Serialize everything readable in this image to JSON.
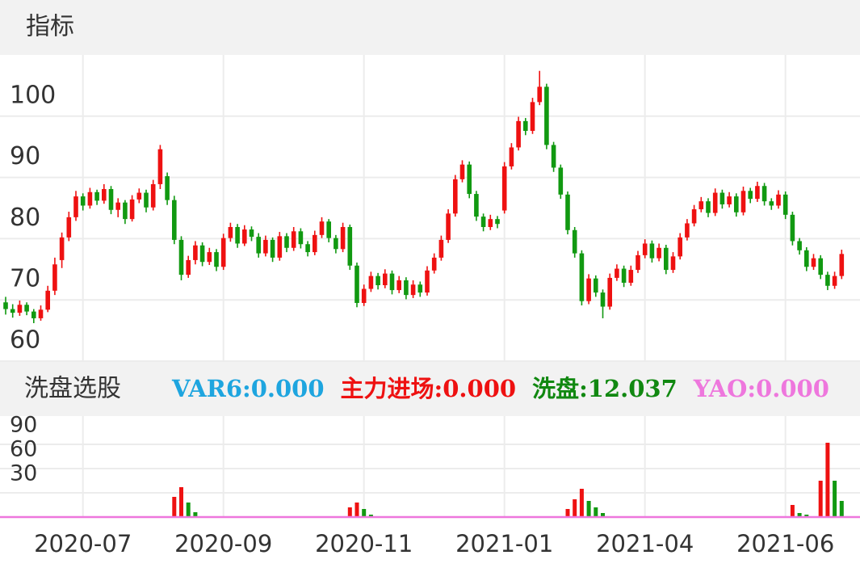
{
  "header": {
    "title": "指标"
  },
  "chart_data": {
    "type": "candlestick",
    "categories": [
      null,
      null,
      null,
      null,
      null,
      null,
      null,
      null,
      null,
      null,
      null,
      "2020-07",
      null,
      null,
      null,
      null,
      null,
      null,
      null,
      null,
      null,
      null,
      null,
      null,
      null,
      null,
      null,
      null,
      null,
      null,
      null,
      "2020-09",
      null,
      null,
      null,
      null,
      null,
      null,
      null,
      null,
      null,
      null,
      null,
      null,
      null,
      null,
      null,
      null,
      null,
      null,
      null,
      "2020-11",
      null,
      null,
      null,
      null,
      null,
      null,
      null,
      null,
      null,
      null,
      null,
      null,
      null,
      null,
      null,
      null,
      null,
      null,
      null,
      "2021-01",
      null,
      null,
      null,
      null,
      null,
      null,
      null,
      null,
      null,
      null,
      null,
      null,
      null,
      null,
      null,
      null,
      null,
      null,
      null,
      "2021-04",
      null,
      null,
      null,
      null,
      null,
      null,
      null,
      null,
      null,
      null,
      null,
      null,
      null,
      null,
      null,
      null,
      null,
      null,
      null,
      "2021-06",
      null,
      null,
      null,
      null,
      null,
      null,
      null,
      null
    ],
    "up_color": "#ee1111",
    "down_color": "#119911",
    "candles": [
      [
        69.6,
        70.5,
        67.6,
        68.5
      ],
      [
        68.5,
        69.3,
        67.1,
        67.9
      ],
      [
        67.9,
        69.9,
        67.4,
        69.2
      ],
      [
        69.2,
        69.6,
        67.5,
        68.1
      ],
      [
        68.1,
        68.5,
        66.2,
        67.0
      ],
      [
        67.0,
        69.1,
        66.6,
        68.4
      ],
      [
        68.4,
        72.3,
        68.0,
        71.5
      ],
      [
        71.5,
        76.9,
        70.8,
        75.8
      ],
      [
        76.5,
        81.0,
        75.2,
        80.2
      ],
      [
        80.2,
        84.4,
        79.6,
        83.5
      ],
      [
        83.5,
        87.8,
        82.9,
        86.9
      ],
      [
        86.9,
        87.4,
        84.6,
        85.4
      ],
      [
        85.4,
        88.3,
        84.9,
        87.6
      ],
      [
        87.6,
        88.0,
        85.5,
        86.2
      ],
      [
        86.2,
        88.9,
        85.7,
        88.1
      ],
      [
        88.1,
        88.6,
        84.0,
        84.7
      ],
      [
        84.7,
        86.6,
        83.5,
        85.9
      ],
      [
        85.9,
        86.3,
        82.4,
        83.2
      ],
      [
        83.2,
        87.1,
        82.8,
        86.4
      ],
      [
        86.4,
        88.2,
        85.8,
        87.5
      ],
      [
        87.5,
        88.0,
        84.3,
        85.1
      ],
      [
        85.1,
        89.6,
        84.6,
        88.9
      ],
      [
        88.9,
        95.3,
        88.1,
        94.6
      ],
      [
        90.2,
        90.8,
        85.5,
        86.3
      ],
      [
        86.3,
        87.0,
        79.1,
        79.8
      ],
      [
        79.8,
        80.4,
        73.2,
        74.1
      ],
      [
        74.1,
        77.2,
        73.6,
        76.5
      ],
      [
        76.5,
        79.6,
        75.8,
        78.9
      ],
      [
        78.9,
        79.4,
        75.5,
        76.2
      ],
      [
        76.2,
        78.5,
        75.7,
        77.8
      ],
      [
        77.8,
        78.3,
        74.7,
        75.4
      ],
      [
        75.4,
        80.8,
        74.9,
        80.1
      ],
      [
        80.1,
        82.6,
        79.5,
        81.9
      ],
      [
        81.9,
        82.4,
        78.5,
        79.2
      ],
      [
        79.2,
        82.2,
        78.8,
        81.5
      ],
      [
        81.5,
        82.0,
        79.6,
        80.3
      ],
      [
        80.3,
        80.9,
        76.9,
        77.6
      ],
      [
        77.6,
        80.5,
        77.1,
        79.8
      ],
      [
        79.8,
        80.2,
        76.2,
        76.9
      ],
      [
        76.9,
        81.1,
        76.4,
        80.4
      ],
      [
        80.4,
        80.9,
        77.8,
        78.5
      ],
      [
        78.5,
        81.9,
        78.0,
        81.2
      ],
      [
        81.2,
        81.7,
        78.4,
        79.1
      ],
      [
        79.1,
        79.6,
        77.1,
        77.8
      ],
      [
        77.8,
        81.3,
        77.3,
        80.6
      ],
      [
        80.6,
        83.5,
        80.1,
        82.8
      ],
      [
        82.8,
        83.2,
        79.4,
        80.1
      ],
      [
        80.1,
        80.6,
        77.6,
        78.3
      ],
      [
        78.3,
        82.6,
        77.8,
        81.9
      ],
      [
        81.9,
        82.3,
        74.9,
        75.6
      ],
      [
        75.6,
        76.1,
        68.8,
        69.5
      ],
      [
        69.5,
        72.5,
        69.0,
        71.8
      ],
      [
        71.8,
        74.6,
        71.3,
        73.9
      ],
      [
        73.9,
        74.4,
        71.7,
        72.4
      ],
      [
        72.4,
        75.0,
        71.9,
        74.3
      ],
      [
        74.3,
        74.8,
        70.9,
        71.6
      ],
      [
        71.6,
        73.9,
        71.1,
        73.2
      ],
      [
        73.2,
        73.7,
        70.1,
        70.8
      ],
      [
        70.8,
        73.2,
        70.3,
        72.5
      ],
      [
        72.5,
        73.0,
        70.5,
        71.2
      ],
      [
        71.2,
        75.5,
        70.7,
        74.8
      ],
      [
        74.8,
        77.6,
        74.3,
        76.9
      ],
      [
        76.9,
        80.5,
        76.4,
        79.8
      ],
      [
        79.8,
        84.8,
        79.3,
        84.1
      ],
      [
        84.1,
        90.4,
        83.6,
        89.7
      ],
      [
        89.7,
        92.8,
        89.2,
        92.1
      ],
      [
        92.1,
        92.6,
        86.6,
        87.3
      ],
      [
        87.3,
        87.8,
        82.9,
        83.6
      ],
      [
        83.6,
        84.1,
        81.2,
        81.9
      ],
      [
        81.9,
        83.9,
        81.4,
        83.2
      ],
      [
        83.2,
        83.7,
        81.7,
        82.4
      ],
      [
        84.6,
        92.5,
        84.1,
        91.8
      ],
      [
        91.8,
        95.6,
        91.3,
        94.9
      ],
      [
        94.9,
        99.9,
        94.4,
        99.2
      ],
      [
        99.2,
        99.7,
        96.9,
        97.6
      ],
      [
        97.6,
        103.0,
        97.1,
        102.3
      ],
      [
        102.3,
        107.4,
        101.8,
        104.8
      ],
      [
        104.8,
        105.3,
        94.6,
        95.3
      ],
      [
        95.3,
        95.8,
        90.9,
        91.6
      ],
      [
        91.6,
        92.1,
        86.5,
        87.2
      ],
      [
        87.2,
        87.7,
        80.7,
        81.4
      ],
      [
        81.4,
        81.9,
        76.9,
        77.6
      ],
      [
        77.6,
        78.1,
        69.1,
        69.8
      ],
      [
        69.8,
        74.2,
        69.3,
        73.5
      ],
      [
        73.5,
        74.0,
        70.5,
        71.2
      ],
      [
        71.2,
        71.7,
        67.0,
        68.9
      ],
      [
        68.9,
        74.3,
        68.4,
        73.6
      ],
      [
        73.6,
        75.8,
        73.1,
        75.1
      ],
      [
        75.1,
        75.6,
        72.1,
        72.8
      ],
      [
        72.8,
        75.6,
        72.3,
        74.9
      ],
      [
        74.9,
        78.0,
        74.4,
        77.3
      ],
      [
        77.3,
        79.9,
        76.8,
        79.2
      ],
      [
        79.2,
        79.7,
        76.1,
        76.8
      ],
      [
        76.8,
        79.2,
        76.3,
        78.5
      ],
      [
        78.5,
        79.0,
        74.2,
        74.9
      ],
      [
        74.9,
        77.8,
        74.4,
        77.1
      ],
      [
        77.1,
        80.9,
        76.6,
        80.2
      ],
      [
        80.2,
        83.2,
        79.7,
        82.5
      ],
      [
        82.5,
        85.5,
        82.0,
        84.8
      ],
      [
        84.8,
        86.8,
        84.3,
        86.1
      ],
      [
        86.1,
        86.6,
        83.5,
        84.2
      ],
      [
        84.2,
        88.2,
        83.7,
        87.5
      ],
      [
        87.5,
        88.0,
        84.9,
        85.6
      ],
      [
        85.6,
        87.6,
        85.1,
        86.9
      ],
      [
        86.9,
        87.4,
        83.6,
        84.3
      ],
      [
        84.3,
        88.5,
        83.8,
        87.8
      ],
      [
        87.8,
        88.3,
        85.8,
        86.5
      ],
      [
        86.5,
        89.3,
        86.0,
        88.6
      ],
      [
        88.6,
        89.1,
        85.4,
        86.1
      ],
      [
        86.1,
        86.6,
        84.7,
        85.4
      ],
      [
        85.4,
        87.9,
        84.9,
        87.2
      ],
      [
        87.2,
        87.7,
        83.2,
        83.9
      ],
      [
        83.9,
        84.4,
        78.9,
        79.6
      ],
      [
        79.6,
        80.1,
        77.4,
        78.1
      ],
      [
        78.1,
        78.6,
        74.7,
        75.4
      ],
      [
        75.4,
        77.5,
        74.9,
        76.8
      ],
      [
        76.8,
        77.3,
        73.4,
        74.1
      ],
      [
        74.1,
        74.6,
        71.6,
        72.3
      ],
      [
        72.3,
        74.6,
        71.8,
        73.9
      ],
      [
        73.9,
        78.2,
        73.4,
        77.5
      ]
    ],
    "ylim": [
      60,
      110
    ],
    "yticks": [
      60,
      70,
      80,
      90,
      100
    ],
    "grid": true
  },
  "indicator": {
    "type": "bar",
    "title": "洗盘选股",
    "legend": [
      {
        "text": "VAR6:0.000",
        "color": "#1ea5df"
      },
      {
        "text": "主力进场:0.000",
        "color": "#ee1111"
      },
      {
        "text": "洗盘:12.037",
        "color": "#118811"
      },
      {
        "text": "YAO:0.000",
        "color": "#ee77dd"
      }
    ],
    "series": [
      {
        "color": "#ee1111",
        "values": [
          null,
          null,
          null,
          null,
          null,
          null,
          null,
          null,
          null,
          null,
          null,
          null,
          null,
          null,
          null,
          null,
          null,
          null,
          null,
          null,
          null,
          null,
          null,
          null,
          25,
          37,
          null,
          null,
          null,
          null,
          null,
          null,
          null,
          null,
          null,
          null,
          null,
          null,
          null,
          null,
          null,
          null,
          null,
          null,
          null,
          null,
          null,
          null,
          null,
          12,
          18,
          null,
          null,
          null,
          null,
          null,
          null,
          null,
          null,
          null,
          null,
          null,
          null,
          null,
          null,
          null,
          null,
          null,
          null,
          null,
          null,
          null,
          null,
          null,
          null,
          null,
          null,
          null,
          null,
          null,
          10,
          22,
          35,
          null,
          null,
          null,
          null,
          null,
          null,
          null,
          null,
          null,
          null,
          null,
          null,
          null,
          null,
          null,
          null,
          null,
          null,
          null,
          null,
          null,
          null,
          null,
          null,
          null,
          null,
          null,
          null,
          null,
          15,
          null,
          null,
          null,
          45,
          92,
          null,
          null
        ]
      },
      {
        "color": "#119911",
        "values": [
          null,
          null,
          null,
          null,
          null,
          null,
          null,
          null,
          null,
          null,
          null,
          null,
          null,
          null,
          null,
          null,
          null,
          null,
          null,
          null,
          null,
          null,
          null,
          null,
          null,
          null,
          18,
          6,
          null,
          null,
          null,
          null,
          null,
          null,
          null,
          null,
          null,
          null,
          null,
          null,
          null,
          null,
          null,
          null,
          null,
          null,
          null,
          null,
          null,
          null,
          null,
          10,
          3,
          null,
          null,
          null,
          null,
          null,
          null,
          null,
          null,
          null,
          null,
          null,
          null,
          null,
          null,
          null,
          null,
          null,
          null,
          null,
          null,
          null,
          null,
          null,
          null,
          null,
          null,
          null,
          null,
          null,
          null,
          20,
          12,
          5,
          null,
          null,
          null,
          null,
          null,
          null,
          null,
          null,
          null,
          null,
          null,
          null,
          null,
          null,
          null,
          null,
          null,
          null,
          null,
          null,
          null,
          null,
          null,
          null,
          null,
          null,
          null,
          5,
          3,
          null,
          null,
          null,
          45,
          20
        ]
      }
    ],
    "yao": {
      "value": 0,
      "color": "#ee77dd"
    },
    "ylim": [
      0,
      125
    ],
    "yticks": [
      30,
      60,
      90
    ]
  }
}
